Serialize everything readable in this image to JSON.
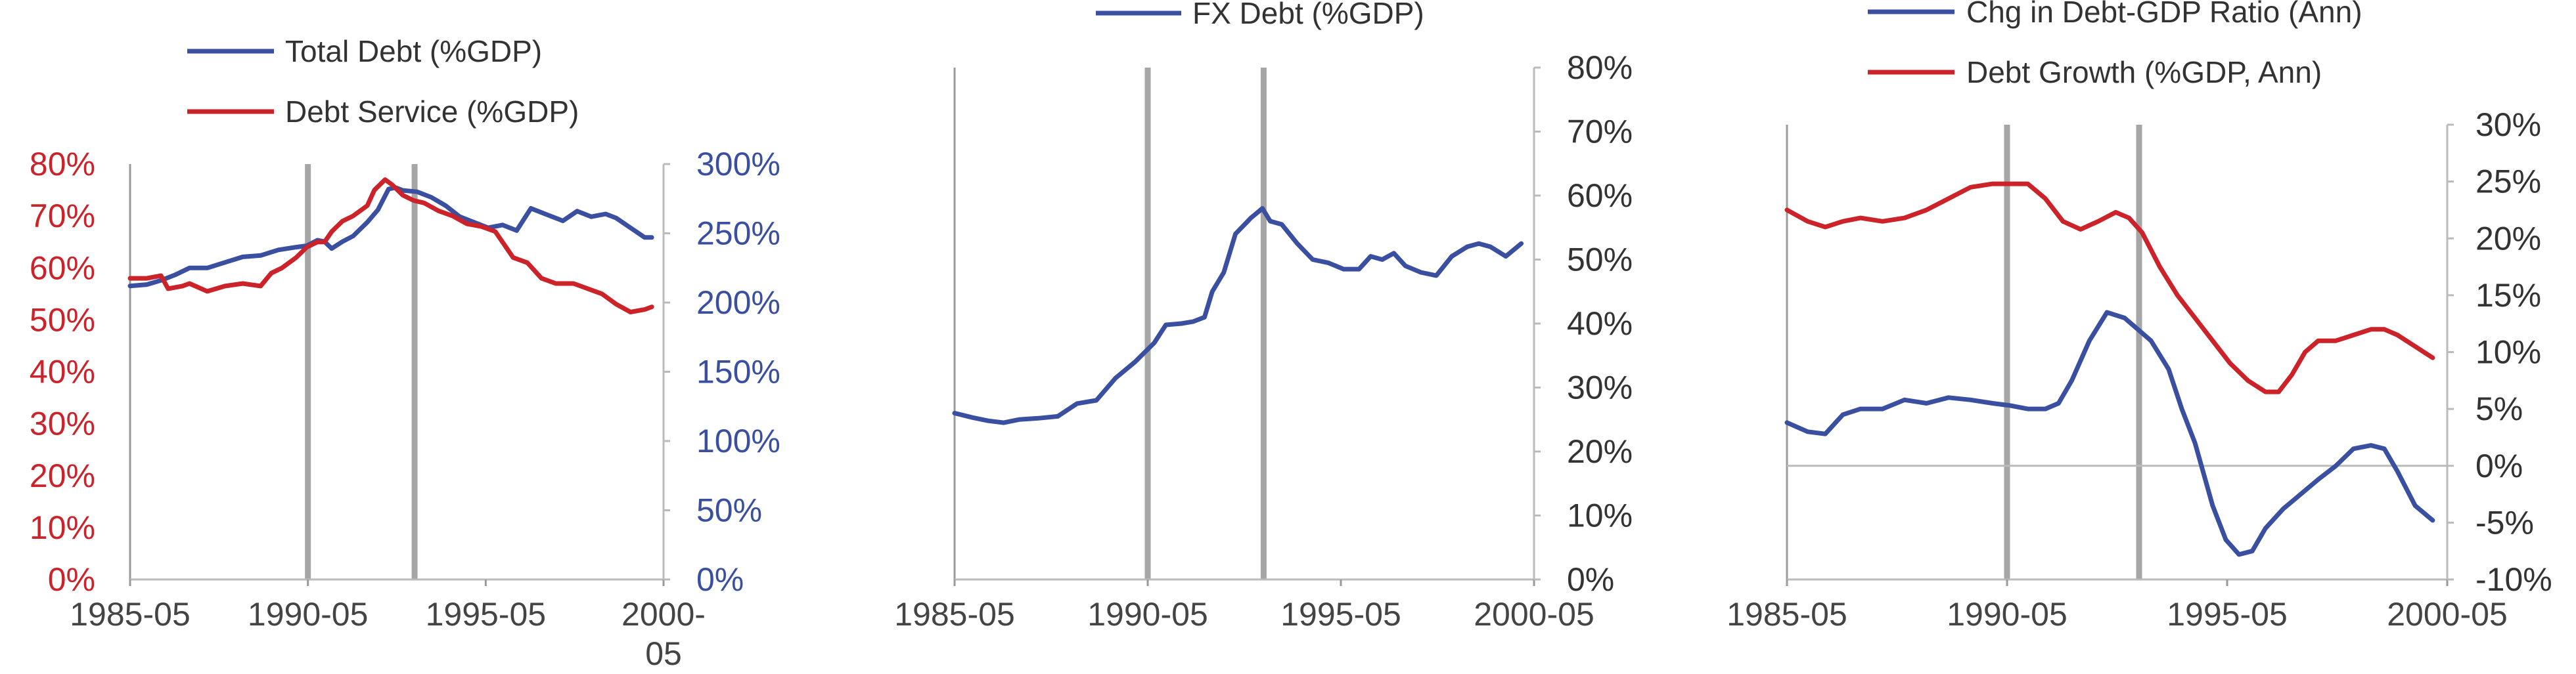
{
  "chart_data": [
    {
      "type": "line",
      "x_ticks": [
        "1985-05",
        "1990-05",
        "1995-05",
        "2000-\n05"
      ],
      "xlim": [
        1985.33,
        2000.33
      ],
      "legend": [
        "Total Debt (%GDP)",
        "Debt Service (%GDP)"
      ],
      "axes": {
        "left": {
          "ticks": [
            "0%",
            "10%",
            "20%",
            "30%",
            "40%",
            "50%",
            "60%",
            "70%",
            "80%"
          ],
          "range": [
            0,
            80
          ],
          "color": "#cc2229"
        },
        "right": {
          "ticks": [
            "0%",
            "50%",
            "100%",
            "150%",
            "200%",
            "250%",
            "300%"
          ],
          "range": [
            0,
            300
          ],
          "color": "#3a4fa0"
        }
      },
      "vertical_lines": [
        1990.33,
        1993.33
      ],
      "series": [
        {
          "name": "Total Debt (%GDP)",
          "axis": "right",
          "color": "#3a4fa0",
          "x": [
            1985.33,
            1985.8,
            1986.2,
            1986.6,
            1987.0,
            1987.5,
            1988.0,
            1988.5,
            1989.0,
            1989.5,
            1990.0,
            1990.3,
            1990.6,
            1990.8,
            1991.0,
            1991.3,
            1991.6,
            1992.0,
            1992.3,
            1992.6,
            1992.8,
            1993.0,
            1993.4,
            1993.8,
            1994.2,
            1994.6,
            1995.0,
            1995.4,
            1995.8,
            1996.2,
            1996.6,
            1997.0,
            1997.5,
            1997.9,
            1998.3,
            1998.7,
            1999.0,
            1999.4,
            1999.8,
            2000.0
          ],
          "values": [
            212,
            213,
            216,
            220,
            225,
            225,
            229,
            233,
            234,
            238,
            240,
            241,
            245,
            244,
            239,
            244,
            248,
            258,
            267,
            282,
            283,
            281,
            280,
            276,
            270,
            262,
            258,
            254,
            256,
            252,
            268,
            264,
            259,
            266,
            262,
            264,
            261,
            254,
            247,
            247
          ]
        },
        {
          "name": "Debt Service (%GDP)",
          "axis": "left",
          "color": "#cc2229",
          "x": [
            1985.33,
            1985.8,
            1986.2,
            1986.4,
            1986.8,
            1987.0,
            1987.5,
            1988.0,
            1988.5,
            1989.0,
            1989.3,
            1989.6,
            1989.8,
            1990.0,
            1990.3,
            1990.6,
            1990.8,
            1991.0,
            1991.3,
            1991.6,
            1992.0,
            1992.2,
            1992.5,
            1992.7,
            1993.0,
            1993.3,
            1993.6,
            1994.0,
            1994.4,
            1994.8,
            1995.2,
            1995.6,
            1995.8,
            1996.1,
            1996.5,
            1996.9,
            1997.3,
            1997.8,
            1998.2,
            1998.6,
            1999.0,
            1999.4,
            1999.8,
            2000.0
          ],
          "values": [
            58,
            58,
            58.5,
            56,
            56.5,
            57,
            55.5,
            56.5,
            57,
            56.5,
            59,
            60,
            61,
            62,
            64,
            65,
            65,
            67,
            69,
            70,
            72,
            75,
            77,
            76,
            74,
            73,
            72.5,
            71,
            70,
            68.5,
            68,
            67,
            65,
            62,
            61,
            58,
            57,
            57,
            56,
            55,
            53,
            51.5,
            52,
            52.5
          ]
        }
      ]
    },
    {
      "type": "line",
      "x_ticks": [
        "1985-05",
        "1990-05",
        "1995-05",
        "2000-05"
      ],
      "xlim": [
        1985.33,
        2000.33
      ],
      "legend": [
        "FX Debt (%GDP)"
      ],
      "axes": {
        "right": {
          "ticks": [
            "0%",
            "10%",
            "20%",
            "30%",
            "40%",
            "50%",
            "60%",
            "70%",
            "80%"
          ],
          "range": [
            0,
            80
          ],
          "color": "#333333"
        }
      },
      "vertical_lines": [
        1990.33,
        1993.33
      ],
      "series": [
        {
          "name": "FX Debt (%GDP)",
          "axis": "right",
          "color": "#3a4fa0",
          "x": [
            1985.33,
            1985.8,
            1986.2,
            1986.6,
            1987.0,
            1987.5,
            1988.0,
            1988.5,
            1989.0,
            1989.5,
            1990.0,
            1990.5,
            1990.8,
            1991.2,
            1991.5,
            1991.8,
            1992.0,
            1992.3,
            1992.6,
            1993.0,
            1993.3,
            1993.5,
            1993.8,
            1994.2,
            1994.6,
            1995.0,
            1995.4,
            1995.8,
            1996.1,
            1996.4,
            1996.7,
            1997.0,
            1997.4,
            1997.8,
            1998.2,
            1998.6,
            1998.9,
            1999.2,
            1999.6,
            2000.0
          ],
          "values": [
            26,
            25.3,
            24.8,
            24.5,
            25,
            25.2,
            25.5,
            27.5,
            28,
            31.5,
            34,
            37,
            39.8,
            40,
            40.3,
            41,
            45,
            48,
            54,
            56.5,
            58,
            56,
            55.5,
            52.5,
            50,
            49.5,
            48.5,
            48.5,
            50.5,
            50,
            51,
            49,
            48,
            47.5,
            50.5,
            52,
            52.5,
            52,
            50.5,
            52.5
          ]
        }
      ]
    },
    {
      "type": "line",
      "x_ticks": [
        "1985-05",
        "1990-05",
        "1995-05",
        "2000-05"
      ],
      "xlim": [
        1985.33,
        2000.33
      ],
      "legend": [
        "Chg in Debt-GDP Ratio (Ann)",
        "Debt Growth (%GDP, Ann)"
      ],
      "axes": {
        "right": {
          "ticks": [
            "-10%",
            "-5%",
            "0%",
            "5%",
            "10%",
            "15%",
            "20%",
            "25%",
            "30%"
          ],
          "range": [
            -10,
            30
          ],
          "color": "#333333"
        }
      },
      "vertical_lines": [
        1990.33,
        1993.33
      ],
      "series": [
        {
          "name": "Chg in Debt-GDP Ratio (Ann)",
          "axis": "right",
          "color": "#3a4fa0",
          "x": [
            1985.33,
            1985.8,
            1986.2,
            1986.6,
            1987.0,
            1987.5,
            1988.0,
            1988.5,
            1989.0,
            1989.5,
            1990.0,
            1990.4,
            1990.8,
            1991.2,
            1991.5,
            1991.8,
            1992.2,
            1992.6,
            1993.0,
            1993.3,
            1993.6,
            1994.0,
            1994.3,
            1994.6,
            1995.0,
            1995.3,
            1995.6,
            1995.9,
            1996.2,
            1996.6,
            1997.0,
            1997.4,
            1997.8,
            1998.2,
            1998.6,
            1998.9,
            1999.2,
            1999.6,
            2000.0
          ],
          "values": [
            3.8,
            3,
            2.8,
            4.5,
            5,
            5,
            5.8,
            5.5,
            6,
            5.8,
            5.5,
            5.3,
            5,
            5,
            5.5,
            7.5,
            11,
            13.5,
            13,
            12,
            11,
            8.5,
            5,
            2,
            -3.5,
            -6.5,
            -7.8,
            -7.5,
            -5.5,
            -3.8,
            -2.5,
            -1.2,
            0,
            1.5,
            1.8,
            1.5,
            -0.5,
            -3.5,
            -4.8
          ]
        },
        {
          "name": "Debt Growth (%GDP, Ann)",
          "axis": "right",
          "color": "#cc2229",
          "x": [
            1985.33,
            1985.8,
            1986.2,
            1986.6,
            1987.0,
            1987.5,
            1988.0,
            1988.5,
            1989.0,
            1989.5,
            1990.0,
            1990.5,
            1990.8,
            1991.2,
            1991.6,
            1992.0,
            1992.4,
            1992.8,
            1993.1,
            1993.4,
            1993.8,
            1994.2,
            1994.6,
            1995.0,
            1995.4,
            1995.8,
            1996.2,
            1996.5,
            1996.8,
            1997.1,
            1997.4,
            1997.8,
            1998.2,
            1998.6,
            1998.9,
            1999.2,
            1999.6,
            2000.0
          ],
          "values": [
            22.5,
            21.5,
            21,
            21.5,
            21.8,
            21.5,
            21.8,
            22.5,
            23.5,
            24.5,
            24.8,
            24.8,
            24.8,
            23.5,
            21.5,
            20.8,
            21.5,
            22.3,
            21.8,
            20.5,
            17.5,
            15,
            13,
            11,
            9,
            7.5,
            6.5,
            6.5,
            8,
            10,
            11,
            11,
            11.5,
            12,
            12,
            11.5,
            10.5,
            9.5
          ]
        }
      ]
    }
  ]
}
